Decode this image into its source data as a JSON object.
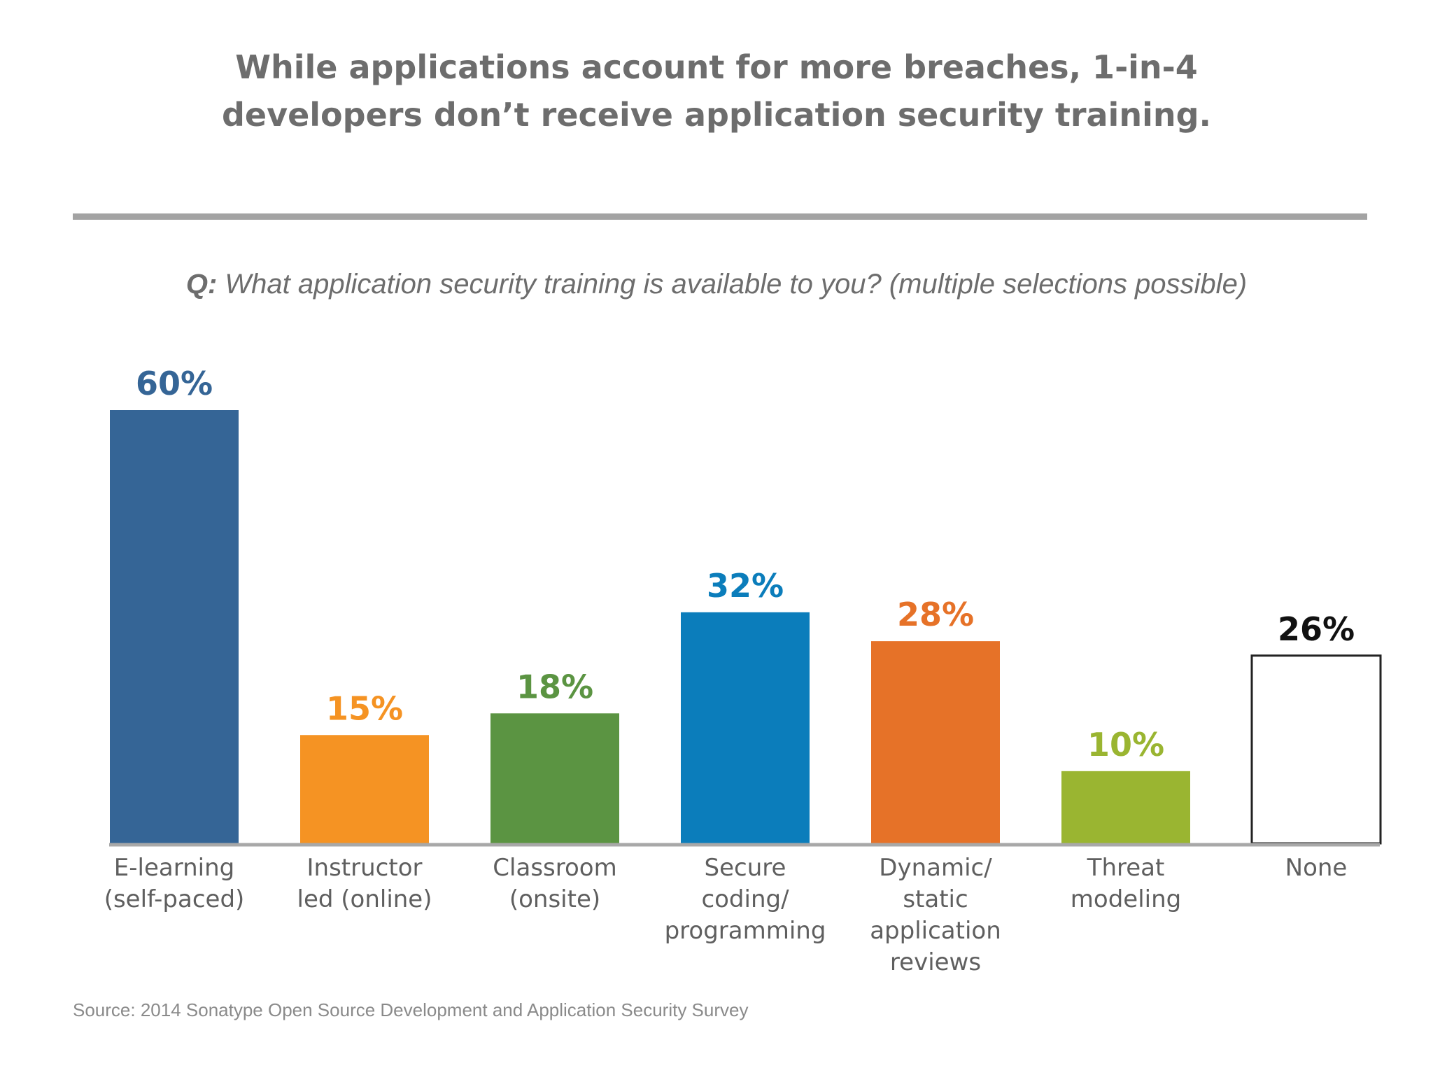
{
  "header": {
    "title_line1": "While applications account for more breaches, 1-in-4",
    "title_line2": "developers don’t receive application security training."
  },
  "question": {
    "prefix": "Q:",
    "text": "What application security training is available to you? (multiple selections possible)"
  },
  "chart_data": {
    "type": "bar",
    "categories": [
      [
        "E-learning",
        "(self-paced)"
      ],
      [
        "Instructor",
        "led (online)"
      ],
      [
        "Classroom",
        "(onsite)"
      ],
      [
        "Secure",
        "coding/",
        "programming"
      ],
      [
        "Dynamic/",
        "static",
        "application",
        "reviews"
      ],
      [
        "Threat",
        "modeling"
      ],
      [
        "None"
      ]
    ],
    "values": [
      60,
      15,
      18,
      32,
      28,
      10,
      26
    ],
    "value_labels": [
      "60%",
      "15%",
      "18%",
      "32%",
      "28%",
      "10%",
      "26%"
    ],
    "colors": [
      "#356596",
      "#f59323",
      "#5b9442",
      "#0b7dbb",
      "#e67228",
      "#9ab531",
      "#ffffff"
    ],
    "label_colors": [
      "#356596",
      "#f59323",
      "#5b9442",
      "#0b7dbb",
      "#e67228",
      "#9ab531",
      "#111111"
    ],
    "outlined": [
      false,
      false,
      false,
      false,
      false,
      false,
      true
    ],
    "unit": "%",
    "ylim": [
      0,
      60
    ],
    "grid": false,
    "legend": "none"
  },
  "footer": {
    "source": "Source: 2014 Sonatype Open Source Development and Application Security Survey"
  }
}
